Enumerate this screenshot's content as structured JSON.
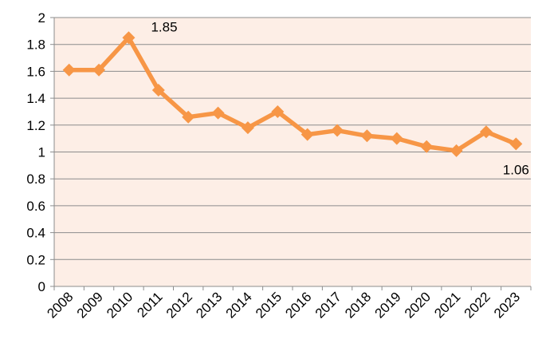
{
  "chart_data": {
    "type": "line",
    "title": "",
    "xlabel": "",
    "ylabel": "",
    "categories": [
      "2008",
      "2009",
      "2010",
      "2011",
      "2012",
      "2013",
      "2014",
      "2015",
      "2016",
      "2017",
      "2018",
      "2019",
      "2020",
      "2021",
      "2022",
      "2023"
    ],
    "series": [
      {
        "values": [
          1.61,
          1.61,
          1.85,
          1.46,
          1.26,
          1.29,
          1.18,
          1.3,
          1.13,
          1.16,
          1.12,
          1.1,
          1.04,
          1.01,
          1.15,
          1.06
        ],
        "color": "#f79646",
        "marker": "diamond"
      }
    ],
    "ylim": [
      0,
      2
    ],
    "yticks": [
      "0",
      "0.2",
      "0.4",
      "0.6",
      "0.8",
      "1",
      "1.2",
      "1.4",
      "1.6",
      "1.8",
      "2"
    ],
    "grid": "horizontal",
    "legend": "none",
    "plot_background": "#fdeee6",
    "data_labels": [
      {
        "category": "2010",
        "text": "1.85"
      },
      {
        "category": "2023",
        "text": "1.06"
      }
    ]
  }
}
